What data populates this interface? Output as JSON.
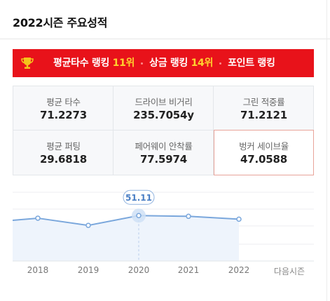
{
  "header": {
    "title": "2022시즌 주요성적"
  },
  "ranking": {
    "icon": "trophy-icon",
    "items": [
      {
        "label": "평균타수 랭킹",
        "value": "11위"
      },
      {
        "label": "상금 랭킹",
        "value": "14위"
      },
      {
        "label": "포인트 랭킹",
        "value": ""
      }
    ]
  },
  "stats": [
    {
      "label": "평균 타수",
      "value": "71.2273"
    },
    {
      "label": "드라이브 비거리",
      "value": "235.7054y"
    },
    {
      "label": "그린 적중률",
      "value": "71.2121"
    },
    {
      "label": "평균 퍼팅",
      "value": "29.6818"
    },
    {
      "label": "페어웨이 안착률",
      "value": "77.5974"
    },
    {
      "label": "벙커 세이브율",
      "value": "47.0588"
    }
  ],
  "chart_data": {
    "type": "line",
    "x": [
      "2018",
      "2019",
      "2020",
      "2021",
      "2022"
    ],
    "values": [
      48.2,
      40.1,
      51.11,
      50.3,
      47.06
    ],
    "highlight": {
      "x": "2020",
      "label": "51.11"
    },
    "next_label": "다음시즌",
    "ylim": [
      0,
      90
    ],
    "grid": true,
    "line_color": "#7aa7dc",
    "fill_color": "#eef4fc"
  },
  "colors": {
    "rank_bar": "#e8121a",
    "rank_highlight": "#ffd22e",
    "active_border": "#e8a49a"
  }
}
